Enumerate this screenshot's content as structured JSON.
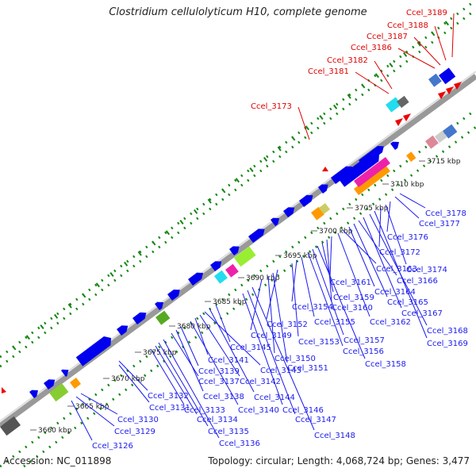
{
  "title": "Clostridium cellulolyticum H10, complete genome",
  "accession_label": "Accession: NC_011898",
  "summary_label": "Topology: circular; Length: 4,068,724 bp; Genes: 3,477",
  "scale_ticks": [
    "3660 kbp",
    "3665 kbp",
    "3670 kbp",
    "3675 kbp",
    "3680 kbp",
    "3685 kbp",
    "3690 kbp",
    "3695 kbp",
    "3700 kbp",
    "3705 kbp",
    "3710 kbp",
    "3715 kbp"
  ],
  "colors": {
    "gene_forward": "#0000ee",
    "gene_reverse": "#0000ee",
    "highlight": "#ee0000",
    "backbone": "#999999",
    "dots": "#118811",
    "label_blue": "#1a1aee",
    "label_red": "#dd0000"
  },
  "top_labels": [
    "Ccel_3173",
    "Ccel_3181",
    "Ccel_3182",
    "Ccel_3186",
    "Ccel_3187",
    "Ccel_3188",
    "Ccel_3189"
  ],
  "bottom_labels": [
    "Ccel_3126",
    "Ccel_3129",
    "Ccel_3130",
    "Ccel_3131",
    "Ccel_3132",
    "Ccel_3133",
    "Ccel_3134",
    "Ccel_3135",
    "Ccel_3136",
    "Ccel_3137",
    "Ccel_3138",
    "Ccel_3139",
    "Ccel_3140",
    "Ccel_3141",
    "Ccel_3142",
    "Ccel_3143",
    "Ccel_3144",
    "Ccel_3145",
    "Ccel_3146",
    "Ccel_3147",
    "Ccel_3148",
    "Ccel_3149",
    "Ccel_3150",
    "Ccel_3151",
    "Ccel_3152",
    "Ccel_3153",
    "Ccel_3154",
    "Ccel_3155",
    "Ccel_3156",
    "Ccel_3157",
    "Ccel_3158",
    "Ccel_3159",
    "Ccel_3160",
    "Ccel_3161",
    "Ccel_3162",
    "Ccel_3163",
    "Ccel_3164",
    "Ccel_3165",
    "Ccel_3166",
    "Ccel_3167",
    "Ccel_3168",
    "Ccel_3169",
    "Ccel_3172",
    "Ccel_3174",
    "Ccel_3176",
    "Ccel_3177",
    "Ccel_3178"
  ]
}
